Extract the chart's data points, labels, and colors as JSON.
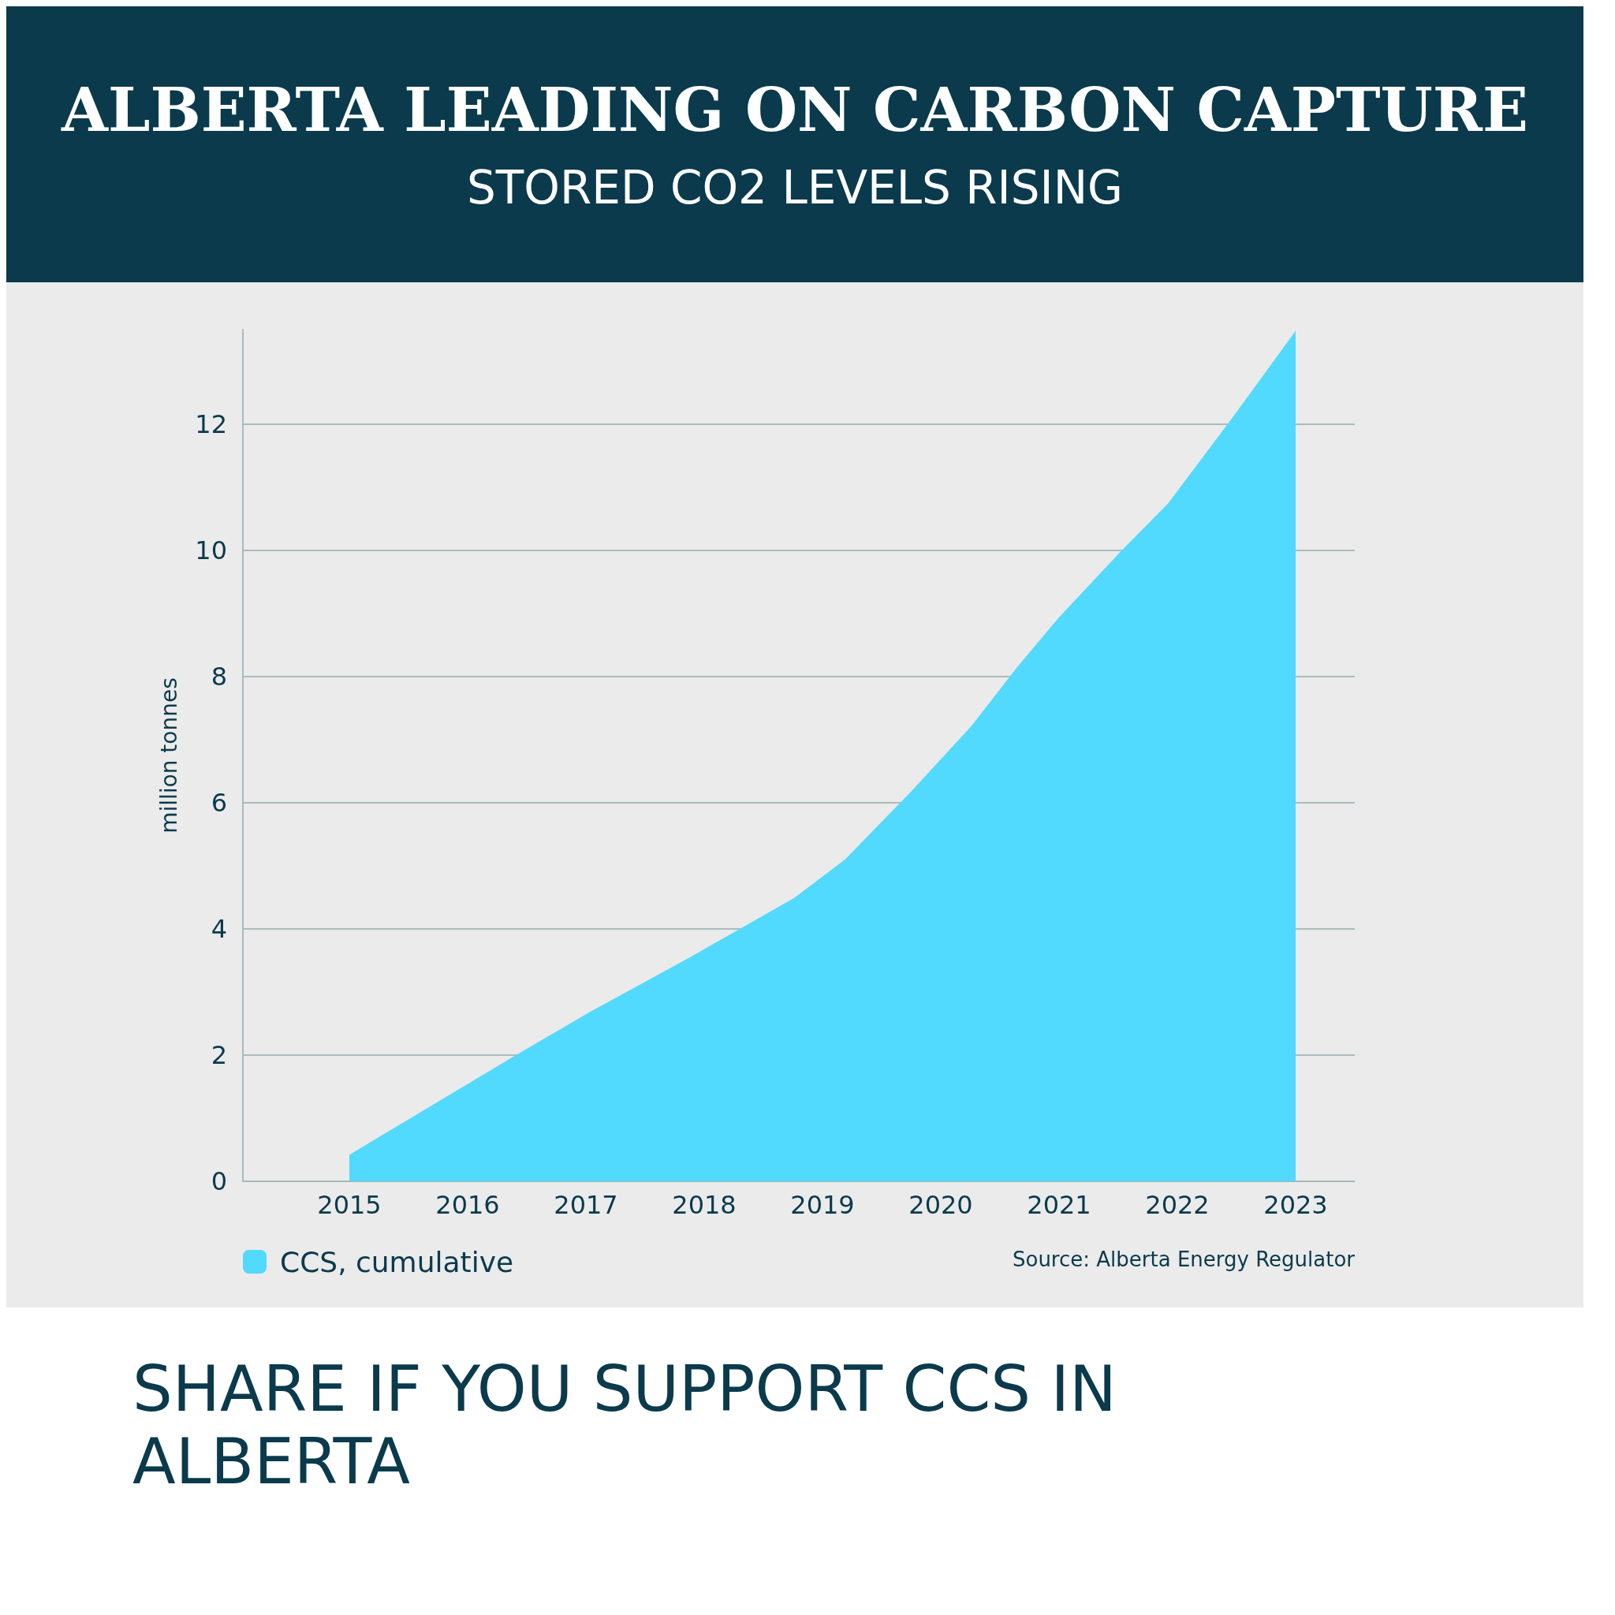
{
  "chart_data": {
    "type": "area",
    "title": "ALBERTA LEADING ON CARBON CAPTURE",
    "subtitle": "STORED CO2 LEVELS RISING",
    "ylabel": "million tonnes",
    "annotations": [
      "Source: Alberta Energy Regulator",
      "SHARE IF YOU SUPPORT CCS IN ALBERTA"
    ],
    "series": [
      {
        "name": "CCS, cumulative",
        "color": "#52d9fe",
        "x": [
          2015,
          2016.4,
          2017.04,
          2017.87,
          2018.76,
          2019.19,
          2019.74,
          2020.26,
          2020.65,
          2020.99,
          2021.53,
          2021.92,
          2022.46,
          2023
        ],
        "values": [
          0.42,
          1.99,
          2.69,
          3.54,
          4.49,
          5.1,
          6.16,
          7.22,
          8.16,
          8.92,
          10.0,
          10.74,
          12.09,
          13.48
        ]
      }
    ],
    "xlim": [
      2014.1,
      2023.5
    ],
    "xticks": [
      2015,
      2016,
      2017,
      2018,
      2019,
      2020,
      2021,
      2022,
      2023
    ],
    "ylim": [
      0,
      13.5
    ],
    "yticks": [
      0,
      2,
      4,
      6,
      8,
      10,
      12
    ],
    "grid": "y",
    "legend": "bottom left",
    "marker": "none"
  }
}
